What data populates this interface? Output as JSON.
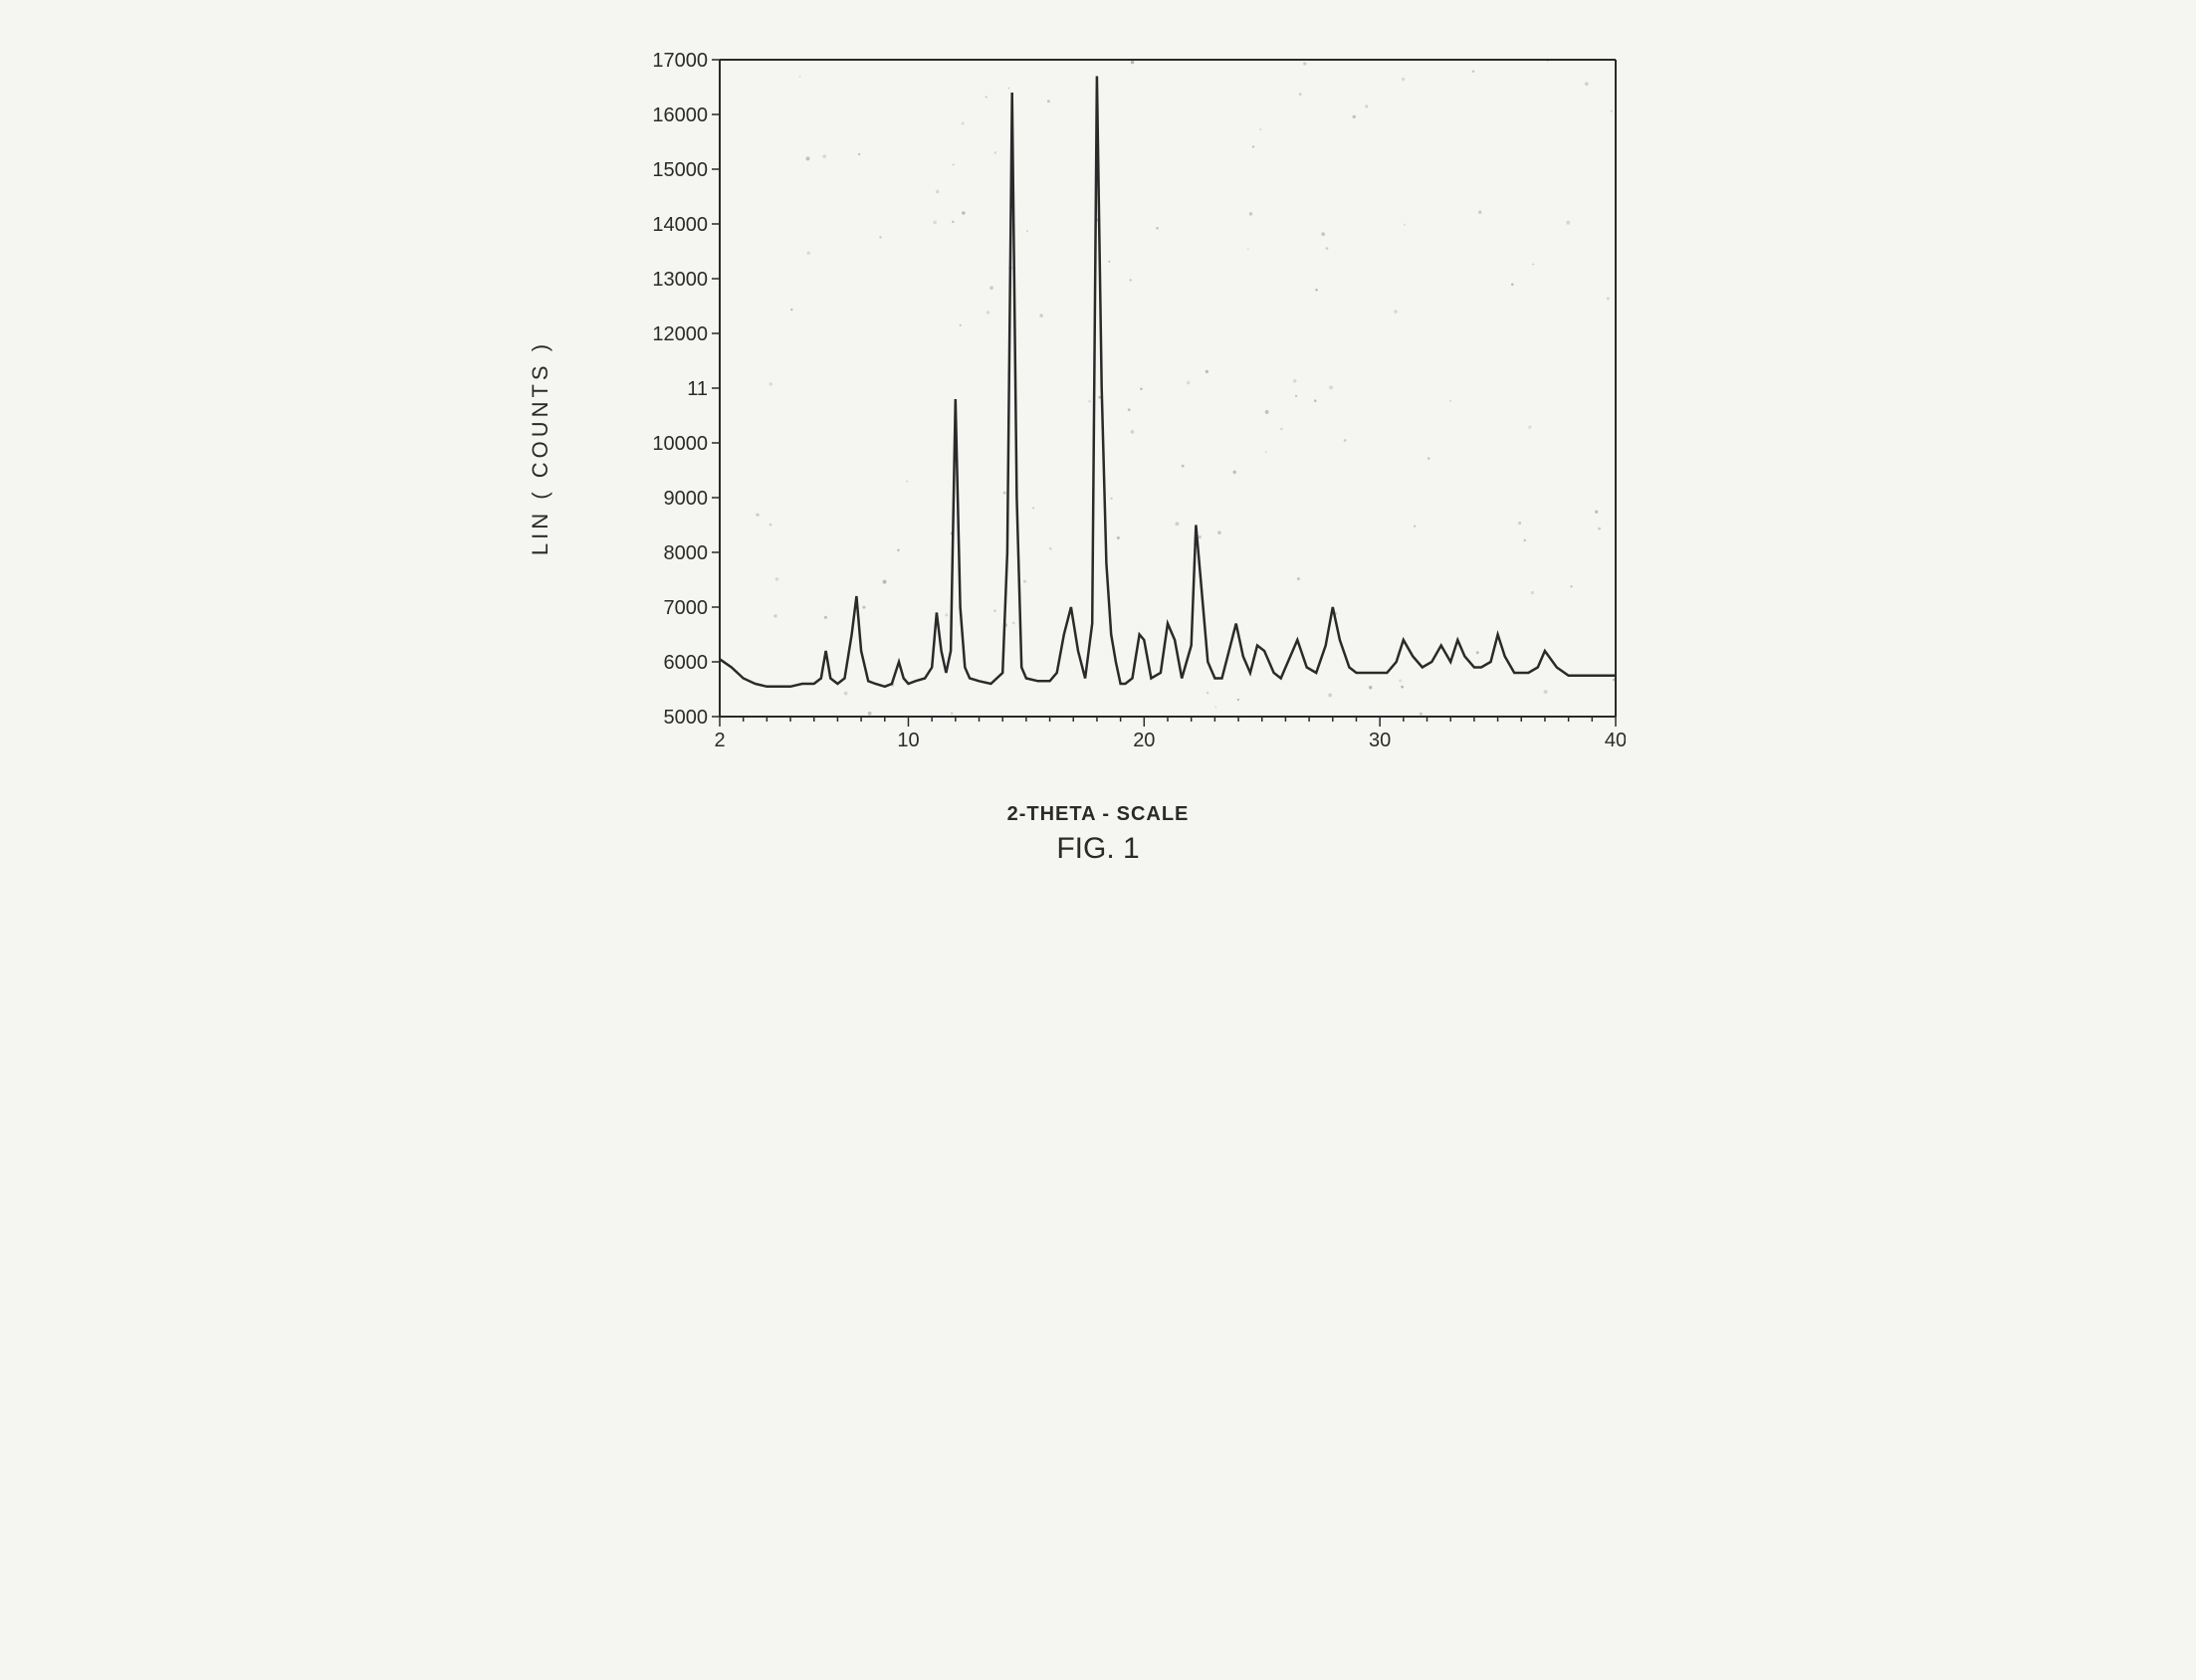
{
  "chart": {
    "type": "line",
    "title": "",
    "figure_label": "FIG. 1",
    "xlabel": "2-THETA - SCALE",
    "ylabel": "LIN ( COUNTS )",
    "xlim": [
      2,
      40
    ],
    "ylim": [
      5000,
      17000
    ],
    "ytick_step": 1000,
    "ytick_labels": [
      "5000",
      "6000",
      "7000",
      "8000",
      "9000",
      "10000",
      "11",
      "12000",
      "13000",
      "14000",
      "15000",
      "16000",
      "17000"
    ],
    "xtick_positions": [
      2,
      10,
      20,
      30,
      40
    ],
    "xtick_labels": [
      "2",
      "10",
      "20",
      "30",
      "40"
    ],
    "minor_xtick_step": 1,
    "background_color": "#f5f5f2",
    "axis_color": "#2a2a2a",
    "line_color": "#2a2a2a",
    "line_width": 2.5,
    "label_fontsize": 20,
    "axis_label_fontsize": 22,
    "figure_label_fontsize": 30,
    "series": {
      "x": [
        2,
        2.5,
        3,
        3.5,
        4,
        4.5,
        5,
        5.5,
        6,
        6.3,
        6.5,
        6.7,
        7,
        7.3,
        7.6,
        7.8,
        8,
        8.3,
        8.6,
        9,
        9.3,
        9.6,
        9.8,
        10,
        10.3,
        10.7,
        11,
        11.2,
        11.4,
        11.6,
        11.8,
        12,
        12.2,
        12.4,
        12.6,
        13,
        13.5,
        14,
        14.2,
        14.4,
        14.6,
        14.8,
        15,
        15.5,
        16,
        16.3,
        16.6,
        16.9,
        17.2,
        17.5,
        17.8,
        18.0,
        18.2,
        18.4,
        18.6,
        18.8,
        19,
        19.2,
        19.5,
        19.8,
        20,
        20.3,
        20.7,
        21,
        21.3,
        21.6,
        22,
        22.2,
        22.4,
        22.7,
        23,
        23.3,
        23.6,
        23.9,
        24.2,
        24.5,
        24.8,
        25.1,
        25.5,
        25.8,
        26.1,
        26.5,
        26.9,
        27.3,
        27.7,
        28,
        28.3,
        28.7,
        29,
        29.5,
        30,
        30.3,
        30.7,
        31,
        31.4,
        31.8,
        32.2,
        32.6,
        33,
        33.3,
        33.6,
        34,
        34.3,
        34.7,
        35,
        35.3,
        35.7,
        36,
        36.3,
        36.7,
        37,
        37.5,
        38,
        38.5,
        39,
        39.5,
        40
      ],
      "y": [
        6050,
        5900,
        5700,
        5600,
        5550,
        5550,
        5550,
        5600,
        5600,
        5700,
        6200,
        5700,
        5600,
        5700,
        6500,
        7200,
        6200,
        5650,
        5600,
        5550,
        5600,
        6000,
        5700,
        5600,
        5650,
        5700,
        5900,
        6900,
        6200,
        5800,
        6200,
        10800,
        7000,
        5900,
        5700,
        5650,
        5600,
        5800,
        8000,
        16400,
        9000,
        5900,
        5700,
        5650,
        5650,
        5800,
        6500,
        7000,
        6200,
        5700,
        6700,
        16700,
        11000,
        7800,
        6500,
        6000,
        5600,
        5600,
        5700,
        6500,
        6400,
        5700,
        5800,
        6700,
        6400,
        5700,
        6300,
        8500,
        7500,
        6000,
        5700,
        5700,
        6200,
        6700,
        6100,
        5800,
        6300,
        6200,
        5800,
        5700,
        6000,
        6400,
        5900,
        5800,
        6300,
        7000,
        6400,
        5900,
        5800,
        5800,
        5800,
        5800,
        6000,
        6400,
        6100,
        5900,
        6000,
        6300,
        6000,
        6400,
        6100,
        5900,
        5900,
        6000,
        6500,
        6100,
        5800,
        5800,
        5800,
        5900,
        6200,
        5900,
        5750,
        5750,
        5750,
        5750,
        5750
      ]
    },
    "noise_speckle": true,
    "speckle_color": "#555555",
    "speckle_count": 120
  }
}
